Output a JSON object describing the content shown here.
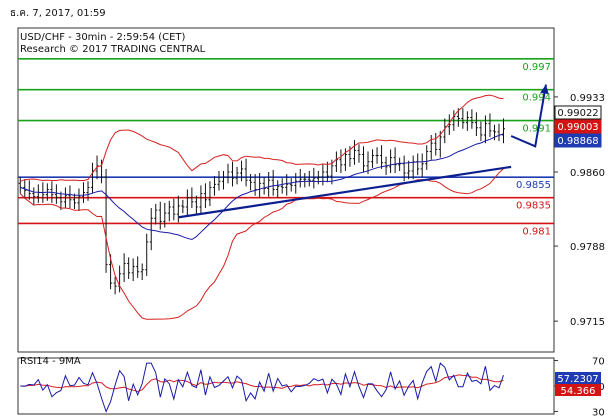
{
  "header": {
    "timestamp": "ธ.ค. 7, 2017, 01:59",
    "instrument_line": "USD/CHF - 30min - 2:59:54 (CET)",
    "research_line": "Research © 2017 TRADING CENTRAL"
  },
  "colors": {
    "resistance": "#1aa31a",
    "support": "#d41414",
    "pivot": "#1f3bb3",
    "trendline": "#0b1f8f",
    "bollinger": "#d62020",
    "moving_average": "#1a1aa8",
    "candles": "#111111",
    "rsi_line": "#1a1aa8",
    "rsi_ma": "#d62020",
    "price_box_current": "#111111",
    "price_box_red": "#d41414",
    "price_box_blue": "#1f3bb3"
  },
  "chart_data": [
    {
      "type": "candlestick",
      "panel": "price",
      "y_range": [
        0.9685,
        1.0
      ],
      "y_ticks": [
        "0.9933",
        "0.9860",
        "0.9788",
        "0.9715"
      ],
      "level_lines": [
        {
          "label": "0.997",
          "value": 0.997,
          "role": "resistance"
        },
        {
          "label": "0.994",
          "value": 0.994,
          "role": "resistance"
        },
        {
          "label": "0.991",
          "value": 0.991,
          "role": "resistance"
        },
        {
          "label": "0.9855",
          "value": 0.9855,
          "role": "pivot"
        },
        {
          "label": "0.9835",
          "value": 0.9835,
          "role": "support"
        },
        {
          "label": "0.981",
          "value": 0.981,
          "role": "support"
        }
      ],
      "price_boxes": [
        {
          "label": "0.99022",
          "value": 0.99022,
          "style": "current"
        },
        {
          "label": "0.99003",
          "value": 0.99003,
          "style": "red"
        },
        {
          "label": "0.98868",
          "value": 0.98868,
          "style": "blue"
        }
      ],
      "trendline": {
        "from": [
          0.3,
          0.9816
        ],
        "to": [
          0.92,
          0.9865
        ]
      },
      "projection_arrow": [
        [
          0.92,
          0.9895
        ],
        [
          0.965,
          0.9885
        ],
        [
          0.985,
          0.9945
        ]
      ],
      "closes": [
        0.9845,
        0.9842,
        0.9839,
        0.9836,
        0.984,
        0.9838,
        0.9843,
        0.9838,
        0.9835,
        0.9831,
        0.9837,
        0.9833,
        0.983,
        0.9836,
        0.984,
        0.9845,
        0.9861,
        0.9866,
        0.9855,
        0.977,
        0.9752,
        0.9749,
        0.9761,
        0.9771,
        0.9762,
        0.9768,
        0.9763,
        0.9765,
        0.9792,
        0.9815,
        0.9823,
        0.9812,
        0.982,
        0.9826,
        0.9819,
        0.9827,
        0.9826,
        0.9835,
        0.9831,
        0.9826,
        0.9839,
        0.9833,
        0.9845,
        0.9848,
        0.9851,
        0.9855,
        0.986,
        0.9854,
        0.9859,
        0.9863,
        0.9852,
        0.985,
        0.9843,
        0.9849,
        0.9844,
        0.9852,
        0.9843,
        0.9846,
        0.9845,
        0.9848,
        0.9847,
        0.9851,
        0.9853,
        0.9853,
        0.9852,
        0.9854,
        0.9855,
        0.986,
        0.9856,
        0.9866,
        0.9872,
        0.9867,
        0.9877,
        0.9873,
        0.9881,
        0.9877,
        0.9866,
        0.987,
        0.9876,
        0.9876,
        0.9869,
        0.9865,
        0.9874,
        0.9867,
        0.9868,
        0.9859,
        0.9861,
        0.987,
        0.9863,
        0.9868,
        0.988,
        0.9888,
        0.9882,
        0.9894,
        0.9904,
        0.9906,
        0.9914,
        0.9912,
        0.9908,
        0.9913,
        0.9908,
        0.9903,
        0.9896,
        0.9907,
        0.99,
        0.9899,
        0.9896,
        0.9902
      ]
    },
    {
      "type": "line",
      "panel": "rsi",
      "title": "RSI14 - 9MA",
      "y_range": [
        28,
        72
      ],
      "y_ticks": [
        "70",
        "50",
        "30"
      ],
      "value_boxes": [
        {
          "label": "57.2307",
          "value": 57.2307,
          "style": "blue"
        },
        {
          "label": "54.366",
          "value": 54.366,
          "style": "red"
        }
      ]
    }
  ]
}
